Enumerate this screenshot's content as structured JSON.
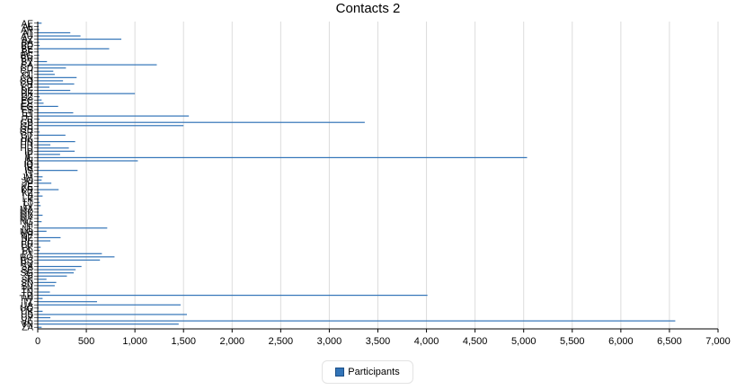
{
  "chart_data": {
    "type": "bar",
    "orientation": "horizontal",
    "title": "Contacts 2",
    "xlabel": "",
    "ylabel": "",
    "xlim": [
      0,
      7000
    ],
    "x_ticks": [
      "0",
      "500",
      "1,000",
      "1,500",
      "2,000",
      "2,500",
      "3,000",
      "3,500",
      "4,000",
      "4,500",
      "5,000",
      "5,500",
      "6,000",
      "6,500",
      "7,000"
    ],
    "grid": "vertical",
    "legend_position": "bottom-center",
    "colors": {
      "bar": "#3274b8",
      "grid": "#dcdcdc",
      "axis": "#000000"
    },
    "categories": [
      "AE",
      "AL",
      "AR",
      "AT",
      "AU",
      "AZ",
      "BA",
      "BD",
      "BE",
      "BF",
      "BG",
      "BR",
      "BY",
      "CA",
      "CD",
      "CH",
      "CL",
      "CN",
      "CO",
      "CR",
      "CZ",
      "DE",
      "DK",
      "DZ",
      "EC",
      "EE",
      "EG",
      "ES",
      "ET",
      "FI",
      "FR",
      "GB",
      "GE",
      "GH",
      "GR",
      "GT",
      "HK",
      "HN",
      "HR",
      "HU",
      "ID",
      "IE",
      "IL",
      "IN",
      "IQ",
      "IR",
      "IS",
      "IT",
      "JM",
      "JO",
      "JP",
      "KE",
      "KR",
      "KZ",
      "LB",
      "LK",
      "LT",
      "LV",
      "MA",
      "MK",
      "MX",
      "MY",
      "NG",
      "NI",
      "NL",
      "NO",
      "NP",
      "NZ",
      "PE",
      "PH",
      "PK",
      "PL",
      "PT",
      "RO",
      "RS",
      "RU",
      "SA",
      "SE",
      "SG",
      "SI",
      "SK",
      "SN",
      "SV",
      "TH",
      "TN",
      "TR",
      "TW",
      "TZ",
      "UA",
      "UG",
      "UK",
      "US",
      "UY",
      "VE",
      "VN",
      "ZA"
    ],
    "series": [
      {
        "name": "Participants",
        "values": [
          40,
          10,
          15,
          335,
          440,
          860,
          15,
          20,
          735,
          10,
          15,
          10,
          95,
          1225,
          290,
          160,
          175,
          400,
          260,
          375,
          120,
          335,
          1000,
          20,
          40,
          60,
          210,
          10,
          365,
          1555,
          20,
          3365,
          1500,
          10,
          20,
          285,
          10,
          385,
          130,
          320,
          380,
          230,
          5035,
          1030,
          10,
          15,
          410,
          10,
          50,
          40,
          140,
          10,
          215,
          20,
          50,
          10,
          20,
          30,
          10,
          10,
          50,
          10,
          40,
          10,
          715,
          90,
          10,
          235,
          130,
          10,
          30,
          20,
          660,
          790,
          640,
          10,
          450,
          390,
          370,
          300,
          90,
          190,
          175,
          10,
          125,
          4010,
          50,
          610,
          1470,
          10,
          50,
          1535,
          130,
          6560,
          1450,
          40
        ]
      }
    ]
  },
  "legend": {
    "label": "Participants"
  }
}
